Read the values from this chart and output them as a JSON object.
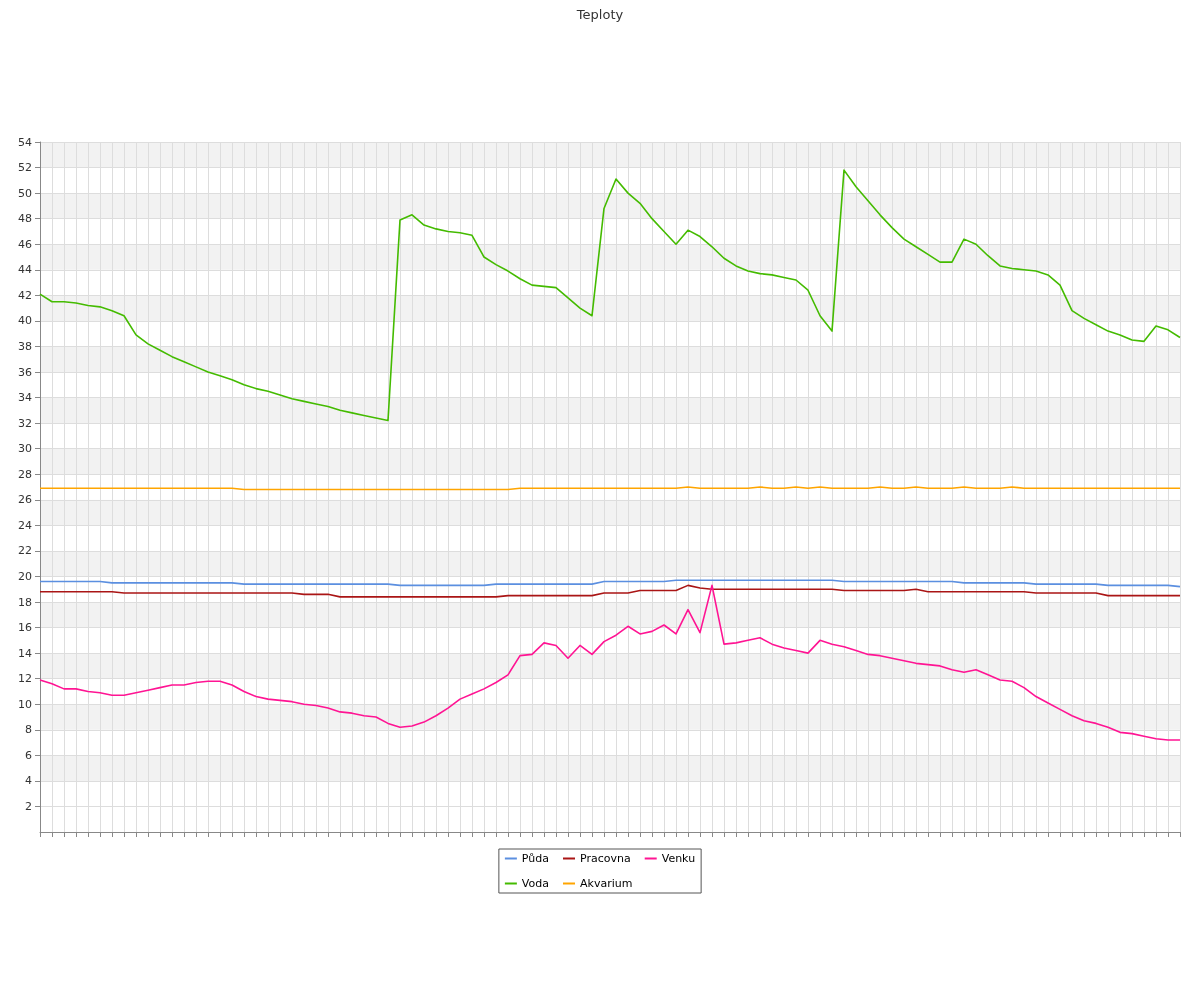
{
  "chart_data": {
    "type": "line",
    "title": "Teploty",
    "categories": [
      null,
      null,
      null,
      null,
      null,
      null,
      null,
      null,
      null,
      null,
      null,
      null,
      null,
      null,
      null,
      null,
      null,
      null,
      null,
      null,
      null,
      null,
      null,
      null,
      null,
      null,
      null,
      null,
      null,
      null,
      null,
      null,
      null,
      null,
      null,
      null,
      null,
      null,
      null,
      null,
      null,
      null,
      null,
      null,
      null,
      null,
      null,
      null,
      null,
      null,
      null,
      null,
      null,
      null,
      null,
      null,
      null,
      null,
      null,
      null,
      null,
      null,
      null,
      null,
      null,
      null,
      null,
      null,
      null,
      null,
      null,
      null,
      null,
      null,
      null,
      null,
      null,
      null,
      null,
      null,
      null,
      null,
      null,
      null,
      null,
      null,
      null,
      null,
      null,
      null,
      null,
      null,
      null,
      null,
      null,
      null
    ],
    "series": [
      {
        "name": "Půda",
        "color": "#5b8fe0",
        "values": [
          19.6,
          19.6,
          19.6,
          19.6,
          19.6,
          19.6,
          19.5,
          19.5,
          19.5,
          19.5,
          19.5,
          19.5,
          19.5,
          19.5,
          19.5,
          19.5,
          19.5,
          19.4,
          19.4,
          19.4,
          19.4,
          19.4,
          19.4,
          19.4,
          19.4,
          19.4,
          19.4,
          19.4,
          19.4,
          19.4,
          19.3,
          19.3,
          19.3,
          19.3,
          19.3,
          19.3,
          19.3,
          19.3,
          19.4,
          19.4,
          19.4,
          19.4,
          19.4,
          19.4,
          19.4,
          19.4,
          19.4,
          19.6,
          19.6,
          19.6,
          19.6,
          19.6,
          19.6,
          19.7,
          19.7,
          19.7,
          19.7,
          19.7,
          19.7,
          19.7,
          19.7,
          19.7,
          19.7,
          19.7,
          19.7,
          19.7,
          19.7,
          19.6,
          19.6,
          19.6,
          19.6,
          19.6,
          19.6,
          19.6,
          19.6,
          19.6,
          19.6,
          19.5,
          19.5,
          19.5,
          19.5,
          19.5,
          19.5,
          19.4,
          19.4,
          19.4,
          19.4,
          19.4,
          19.4,
          19.3,
          19.3,
          19.3,
          19.3,
          19.3,
          19.3,
          19.2
        ]
      },
      {
        "name": "Voda",
        "color": "#44bb00",
        "values": [
          42.1,
          41.5,
          41.5,
          41.4,
          41.2,
          41.1,
          40.8,
          40.4,
          38.9,
          38.2,
          37.7,
          37.2,
          36.8,
          36.4,
          36.0,
          35.7,
          35.4,
          35.0,
          34.7,
          34.5,
          34.2,
          33.9,
          33.7,
          33.5,
          33.3,
          33.0,
          32.8,
          32.6,
          32.4,
          32.2,
          47.9,
          48.3,
          47.5,
          47.2,
          47.0,
          46.9,
          46.7,
          45.0,
          44.4,
          43.9,
          43.3,
          42.8,
          42.7,
          42.6,
          41.8,
          41.0,
          40.4,
          48.8,
          51.1,
          50.0,
          49.2,
          48.0,
          47.0,
          46.0,
          47.1,
          46.6,
          45.8,
          44.9,
          44.3,
          43.9,
          43.7,
          43.6,
          43.4,
          43.2,
          42.4,
          40.4,
          39.2,
          51.8,
          50.5,
          49.4,
          48.3,
          47.3,
          46.4,
          45.8,
          45.2,
          44.6,
          44.6,
          46.4,
          46.0,
          45.1,
          44.3,
          44.1,
          44.0,
          43.9,
          43.6,
          42.8,
          40.8,
          40.2,
          39.7,
          39.2,
          38.9,
          38.5,
          38.4,
          39.6,
          39.3,
          38.7
        ]
      },
      {
        "name": "Pracovna",
        "color": "#aa1515",
        "values": [
          18.8,
          18.8,
          18.8,
          18.8,
          18.8,
          18.8,
          18.8,
          18.7,
          18.7,
          18.7,
          18.7,
          18.7,
          18.7,
          18.7,
          18.7,
          18.7,
          18.7,
          18.7,
          18.7,
          18.7,
          18.7,
          18.7,
          18.6,
          18.6,
          18.6,
          18.4,
          18.4,
          18.4,
          18.4,
          18.4,
          18.4,
          18.4,
          18.4,
          18.4,
          18.4,
          18.4,
          18.4,
          18.4,
          18.4,
          18.5,
          18.5,
          18.5,
          18.5,
          18.5,
          18.5,
          18.5,
          18.5,
          18.7,
          18.7,
          18.7,
          18.9,
          18.9,
          18.9,
          18.9,
          19.3,
          19.1,
          19.0,
          19.0,
          19.0,
          19.0,
          19.0,
          19.0,
          19.0,
          19.0,
          19.0,
          19.0,
          19.0,
          18.9,
          18.9,
          18.9,
          18.9,
          18.9,
          18.9,
          19.0,
          18.8,
          18.8,
          18.8,
          18.8,
          18.8,
          18.8,
          18.8,
          18.8,
          18.8,
          18.7,
          18.7,
          18.7,
          18.7,
          18.7,
          18.7,
          18.5,
          18.5,
          18.5,
          18.5,
          18.5,
          18.5,
          18.5
        ]
      },
      {
        "name": "Akvarium",
        "color": "#ffa500",
        "values": [
          26.9,
          26.9,
          26.9,
          26.9,
          26.9,
          26.9,
          26.9,
          26.9,
          26.9,
          26.9,
          26.9,
          26.9,
          26.9,
          26.9,
          26.9,
          26.9,
          26.9,
          26.8,
          26.8,
          26.8,
          26.8,
          26.8,
          26.8,
          26.8,
          26.8,
          26.8,
          26.8,
          26.8,
          26.8,
          26.8,
          26.8,
          26.8,
          26.8,
          26.8,
          26.8,
          26.8,
          26.8,
          26.8,
          26.8,
          26.8,
          26.9,
          26.9,
          26.9,
          26.9,
          26.9,
          26.9,
          26.9,
          26.9,
          26.9,
          26.9,
          26.9,
          26.9,
          26.9,
          26.9,
          27.0,
          26.9,
          26.9,
          26.9,
          26.9,
          26.9,
          27.0,
          26.9,
          26.9,
          27.0,
          26.9,
          27.0,
          26.9,
          26.9,
          26.9,
          26.9,
          27.0,
          26.9,
          26.9,
          27.0,
          26.9,
          26.9,
          26.9,
          27.0,
          26.9,
          26.9,
          26.9,
          27.0,
          26.9,
          26.9,
          26.9,
          26.9,
          26.9,
          26.9,
          26.9,
          26.9,
          26.9,
          26.9,
          26.9,
          26.9,
          26.9,
          26.9
        ]
      },
      {
        "name": "Venku",
        "color": "#ff1493",
        "values": [
          11.9,
          11.6,
          11.2,
          11.2,
          11.0,
          10.9,
          10.7,
          10.7,
          10.9,
          11.1,
          11.3,
          11.5,
          11.5,
          11.7,
          11.8,
          11.8,
          11.5,
          11.0,
          10.6,
          10.4,
          10.3,
          10.2,
          10.0,
          9.9,
          9.7,
          9.4,
          9.3,
          9.1,
          9.0,
          8.5,
          8.2,
          8.3,
          8.6,
          9.1,
          9.7,
          10.4,
          10.8,
          11.2,
          11.7,
          12.3,
          13.8,
          13.9,
          14.8,
          14.6,
          13.6,
          14.6,
          13.9,
          14.9,
          15.4,
          16.1,
          15.5,
          15.7,
          16.2,
          15.5,
          17.4,
          15.6,
          19.3,
          14.7,
          14.8,
          15.0,
          15.2,
          14.7,
          14.4,
          14.2,
          14.0,
          15.0,
          14.7,
          14.5,
          14.2,
          13.9,
          13.8,
          13.6,
          13.4,
          13.2,
          13.1,
          13.0,
          12.7,
          12.5,
          12.7,
          12.3,
          11.9,
          11.8,
          11.3,
          10.6,
          10.1,
          9.6,
          9.1,
          8.7,
          8.5,
          8.2,
          7.8,
          7.7,
          7.5,
          7.3,
          7.2,
          7.2
        ]
      }
    ],
    "ylim": [
      0,
      54
    ],
    "yticks": [
      2,
      4,
      6,
      8,
      10,
      12,
      14,
      16,
      18,
      20,
      22,
      24,
      26,
      28,
      30,
      32,
      34,
      36,
      38,
      40,
      42,
      44,
      46,
      48,
      50,
      52,
      54
    ],
    "grid": true,
    "legend": "bottom",
    "marker": "none",
    "line_style": "solid"
  }
}
